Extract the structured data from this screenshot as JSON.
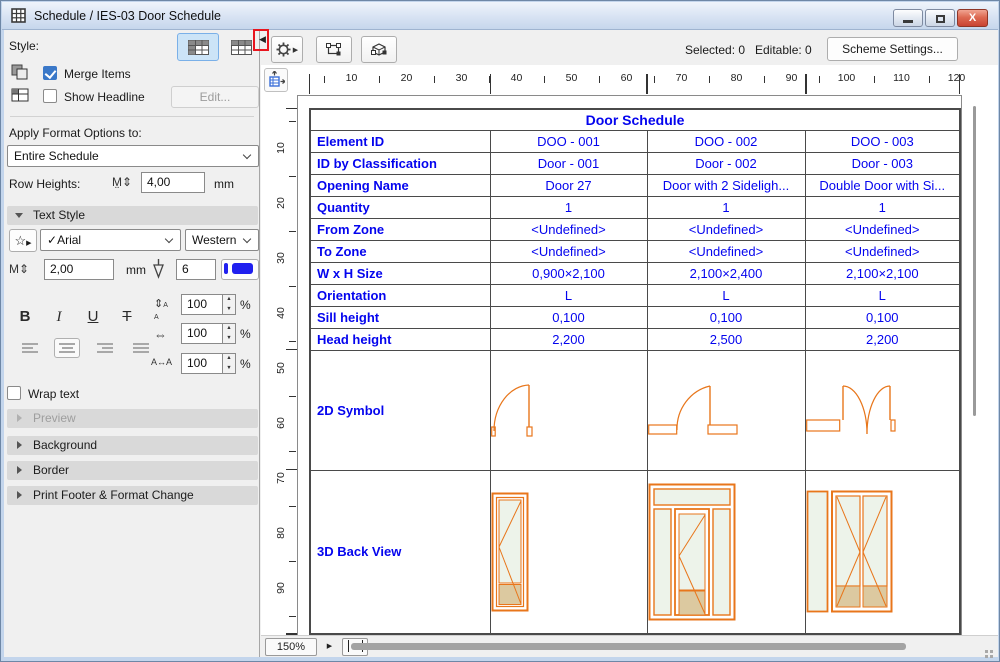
{
  "window": {
    "title": "Schedule / IES-03 Door Schedule"
  },
  "toolbar": {
    "style_label": "Style:",
    "status_selected": "Selected: 0",
    "status_editable": "Editable: 0",
    "scheme_settings_label": "Scheme Settings..."
  },
  "panel": {
    "merge_items_label": "Merge Items",
    "show_headline_label": "Show Headline",
    "edit_button_label": "Edit...",
    "apply_format_label": "Apply Format Options to:",
    "apply_format_value": "Entire Schedule",
    "row_heights_label": "Row Heights:",
    "row_height_value": "4,00",
    "row_height_unit": "mm",
    "text_style_title": "Text Style",
    "font_check": "✓",
    "font_name": "Arial",
    "language_value": "Western",
    "font_size_value": "2,00",
    "font_size_unit": "mm",
    "pen_number": "6",
    "bold_label": "B",
    "italic_label": "I",
    "underline_label": "U",
    "strike_label": "T",
    "line_spacing_value": "100",
    "width_factor_value": "100",
    "spacing_factor_value": "100",
    "percent": "%",
    "wrap_text_label": "Wrap text",
    "sections": [
      {
        "label": "Preview"
      },
      {
        "label": "Background"
      },
      {
        "label": "Border"
      },
      {
        "label": "Print Footer & Format Change"
      }
    ]
  },
  "schedule": {
    "zoom_value": "150%",
    "h_ruler": [
      10,
      20,
      30,
      40,
      50,
      60,
      70,
      80,
      90,
      100,
      110,
      120
    ],
    "v_ruler": [
      10,
      20,
      30,
      40,
      50,
      60,
      70,
      80,
      90
    ],
    "table": {
      "title": "Door Schedule",
      "rows": [
        {
          "label": "Element ID",
          "values": [
            "DOO - 001",
            "DOO - 002",
            "DOO - 003"
          ]
        },
        {
          "label": "ID by Classification",
          "values": [
            "Door - 001",
            "Door - 002",
            "Door - 003"
          ]
        },
        {
          "label": "Opening Name",
          "values": [
            "Door 27",
            "Door with 2 Sideligh...",
            "Double Door with Si..."
          ]
        },
        {
          "label": "Quantity",
          "values": [
            "1",
            "1",
            "1"
          ]
        },
        {
          "label": "From Zone",
          "values": [
            "<Undefined>",
            "<Undefined>",
            "<Undefined>"
          ]
        },
        {
          "label": "To Zone",
          "values": [
            "<Undefined>",
            "<Undefined>",
            "<Undefined>"
          ]
        },
        {
          "label": "W x H Size",
          "values": [
            "0,900×2,100",
            "2,100×2,400",
            "2,100×2,100"
          ]
        },
        {
          "label": "Orientation",
          "values": [
            "L",
            "L",
            "L"
          ]
        },
        {
          "label": "Sill height",
          "values": [
            "0,100",
            "0,100",
            "0,100"
          ]
        },
        {
          "label": "Head height",
          "values": [
            "2,200",
            "2,500",
            "2,200"
          ]
        }
      ],
      "symbol_row_label": "2D Symbol",
      "back_view_row_label": "3D Back View"
    }
  },
  "colors": {
    "table_text": "#0404EE",
    "door_symbol": "#E8761B",
    "glass_fill": "#EDF3EA",
    "panel_fill": "#DCC9A0",
    "annotation_red": "#E8151E",
    "pen_color": "#1F1FEF",
    "checkbox_blue": "#3A78C8",
    "selected_button_bg": "#CCE4F7"
  }
}
